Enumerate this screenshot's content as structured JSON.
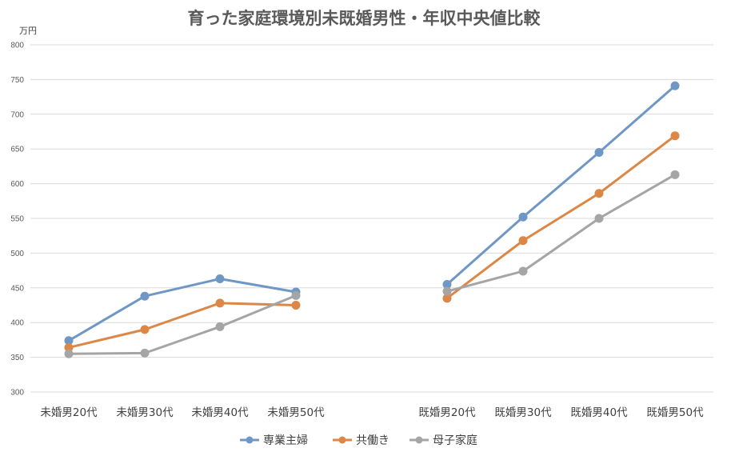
{
  "chart_data": {
    "type": "line",
    "title": "育った家庭環境別未既婚男性・年収中央値比較",
    "ylabel": "万円",
    "xlabel": "",
    "ylim": [
      300,
      800
    ],
    "yticks": [
      300,
      350,
      400,
      450,
      500,
      550,
      600,
      650,
      700,
      750,
      800
    ],
    "grid": true,
    "legend_position": "bottom",
    "groups": [
      {
        "categories": [
          "未婚男20代",
          "未婚男30代",
          "未婚男40代",
          "未婚男50代"
        ],
        "series": [
          {
            "name": "専業主婦",
            "values": [
              374,
              438,
              463,
              444
            ]
          },
          {
            "name": "共働き",
            "values": [
              364,
              390,
              428,
              425
            ]
          },
          {
            "name": "母子家庭",
            "values": [
              355,
              356,
              394,
              439
            ]
          }
        ]
      },
      {
        "categories": [
          "既婚男20代",
          "既婚男30代",
          "既婚男40代",
          "既婚男50代"
        ],
        "series": [
          {
            "name": "専業主婦",
            "values": [
              455,
              552,
              645,
              741
            ]
          },
          {
            "name": "共働き",
            "values": [
              435,
              518,
              586,
              669
            ]
          },
          {
            "name": "母子家庭",
            "values": [
              445,
              474,
              550,
              613
            ]
          }
        ]
      }
    ],
    "legend": [
      {
        "name": "専業主婦",
        "color": "#6f97c6"
      },
      {
        "name": "共働き",
        "color": "#dd8747"
      },
      {
        "name": "母子家庭",
        "color": "#a5a5a5"
      }
    ]
  }
}
